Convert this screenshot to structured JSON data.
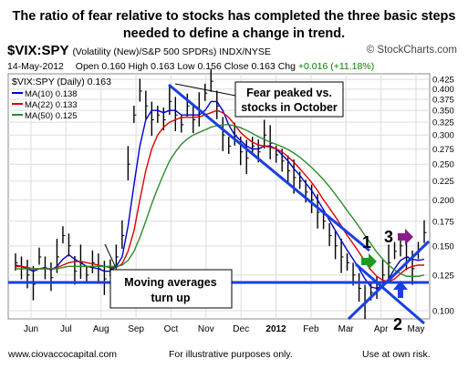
{
  "headline": [
    "The ratio of fear relative to stocks has completed the three basic steps",
    "needed to define a change in trend."
  ],
  "header": {
    "symbol": "$VIX:SPY",
    "description": "(Volatility (New)/S&P 500 SPDRs) INDX/NYSE",
    "logo": "© StockCharts.com",
    "date": "14-May-2012",
    "open_label": "Open",
    "open": "0.160",
    "high_label": "High",
    "high": "0.163",
    "low_label": "Low",
    "low": "0.156",
    "close_label": "Close",
    "close": "0.163",
    "chg_label": "Chg",
    "chg": "+0.016 (+11.18%)"
  },
  "legend": {
    "series": "$VIX:SPY (Daily) 0.163",
    "ma10": "MA(10) 0.138",
    "ma22": "MA(22) 0.133",
    "ma50": "MA(50) 0.125"
  },
  "annotations": {
    "fear_peak": [
      "Fear peaked vs.",
      "stocks in October"
    ],
    "moving_avg": [
      "Moving averages",
      "turn up"
    ],
    "step1": "1",
    "step2": "2",
    "step3": "3"
  },
  "footer": {
    "site": "www.ciovaccocapital.com",
    "note": "For illustrative purposes only.",
    "risk": "Use at own risk."
  },
  "colors": {
    "ma10": "#0000cc",
    "ma22": "#dd0000",
    "ma50": "#2e8b2e",
    "trendline": "#1a3fe0",
    "arrow_green": "#1f9a1f",
    "arrow_purple": "#8b1a8b",
    "arrow_blue": "#1a3fe0"
  },
  "chart_data": {
    "type": "line",
    "price_style": "ohlc-bars",
    "scale": "log",
    "ylim": [
      0.095,
      0.44
    ],
    "yticks": [
      "0.425",
      "0.400",
      "0.375",
      "0.350",
      "0.325",
      "0.300",
      "0.275",
      "0.250",
      "0.225",
      "0.200",
      "0.175",
      "0.150",
      "0.125",
      "0.100"
    ],
    "xticks": [
      "Jun",
      "Jul",
      "Aug",
      "Sep",
      "Oct",
      "Nov",
      "Dec",
      "2012",
      "Feb",
      "Mar",
      "Apr",
      "May"
    ],
    "grid": true,
    "legend_position": "top-left",
    "series": [
      {
        "name": "$VIX:SPY",
        "values": [
          0.135,
          0.13,
          0.125,
          0.118,
          0.14,
          0.13,
          0.123,
          0.14,
          0.16,
          0.15,
          0.128,
          0.135,
          0.125,
          0.135,
          0.13,
          0.122,
          0.13,
          0.14,
          0.16,
          0.25,
          0.34,
          0.395,
          0.36,
          0.33,
          0.34,
          0.33,
          0.37,
          0.34,
          0.32,
          0.36,
          0.33,
          0.35,
          0.39,
          0.42,
          0.36,
          0.3,
          0.28,
          0.3,
          0.27,
          0.26,
          0.28,
          0.27,
          0.3,
          0.285,
          0.265,
          0.255,
          0.24,
          0.23,
          0.225,
          0.21,
          0.2,
          0.185,
          0.175,
          0.16,
          0.15,
          0.14,
          0.135,
          0.125,
          0.115,
          0.105,
          0.112,
          0.115,
          0.125,
          0.135,
          0.145,
          0.15,
          0.14,
          0.13,
          0.145,
          0.163
        ]
      },
      {
        "name": "MA(10)",
        "values": [
          0.133,
          0.132,
          0.13,
          0.128,
          0.13,
          0.131,
          0.129,
          0.132,
          0.138,
          0.142,
          0.138,
          0.135,
          0.132,
          0.131,
          0.13,
          0.128,
          0.128,
          0.132,
          0.14,
          0.17,
          0.22,
          0.28,
          0.33,
          0.35,
          0.35,
          0.345,
          0.35,
          0.35,
          0.34,
          0.34,
          0.34,
          0.34,
          0.35,
          0.37,
          0.37,
          0.35,
          0.32,
          0.3,
          0.29,
          0.28,
          0.275,
          0.275,
          0.28,
          0.28,
          0.275,
          0.265,
          0.255,
          0.243,
          0.233,
          0.222,
          0.212,
          0.2,
          0.188,
          0.176,
          0.165,
          0.155,
          0.146,
          0.138,
          0.13,
          0.122,
          0.116,
          0.115,
          0.117,
          0.122,
          0.13,
          0.137,
          0.14,
          0.138,
          0.137,
          0.138
        ]
      },
      {
        "name": "MA(22)",
        "values": [
          0.132,
          0.132,
          0.131,
          0.13,
          0.13,
          0.13,
          0.13,
          0.131,
          0.133,
          0.135,
          0.136,
          0.136,
          0.135,
          0.134,
          0.133,
          0.132,
          0.131,
          0.131,
          0.134,
          0.145,
          0.165,
          0.2,
          0.24,
          0.275,
          0.3,
          0.315,
          0.325,
          0.33,
          0.335,
          0.335,
          0.335,
          0.336,
          0.34,
          0.345,
          0.35,
          0.345,
          0.335,
          0.32,
          0.305,
          0.295,
          0.287,
          0.282,
          0.28,
          0.278,
          0.275,
          0.27,
          0.262,
          0.253,
          0.243,
          0.233,
          0.223,
          0.212,
          0.2,
          0.19,
          0.18,
          0.17,
          0.16,
          0.152,
          0.144,
          0.136,
          0.129,
          0.124,
          0.121,
          0.12,
          0.122,
          0.126,
          0.13,
          0.132,
          0.133,
          0.133
        ]
      },
      {
        "name": "MA(50)",
        "values": [
          0.13,
          0.13,
          0.13,
          0.13,
          0.13,
          0.13,
          0.13,
          0.13,
          0.131,
          0.132,
          0.132,
          0.132,
          0.132,
          0.132,
          0.132,
          0.132,
          0.132,
          0.132,
          0.133,
          0.137,
          0.145,
          0.158,
          0.175,
          0.195,
          0.215,
          0.235,
          0.255,
          0.27,
          0.283,
          0.293,
          0.3,
          0.305,
          0.31,
          0.315,
          0.318,
          0.32,
          0.32,
          0.318,
          0.314,
          0.309,
          0.303,
          0.297,
          0.292,
          0.287,
          0.283,
          0.279,
          0.274,
          0.268,
          0.261,
          0.253,
          0.245,
          0.236,
          0.227,
          0.217,
          0.207,
          0.197,
          0.187,
          0.178,
          0.169,
          0.16,
          0.152,
          0.144,
          0.138,
          0.133,
          0.129,
          0.126,
          0.124,
          0.124,
          0.124,
          0.125
        ]
      }
    ]
  }
}
